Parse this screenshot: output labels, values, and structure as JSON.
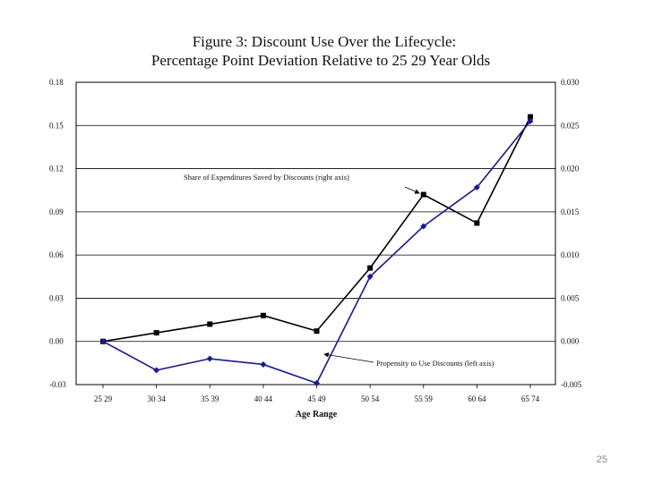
{
  "slide": {
    "page_number": "25"
  },
  "chart_data": {
    "type": "line",
    "title": "Figure 3:  Discount Use Over the Lifecycle:",
    "subtitle": "Percentage Point Deviation Relative to 25  29 Year Olds",
    "xlabel": "Age Range",
    "categories": [
      "25 29",
      "30 34",
      "35 39",
      "40 44",
      "45 49",
      "50 54",
      "55 59",
      "60 64",
      "65 74"
    ],
    "y_left": {
      "ylim": [
        -0.03,
        0.18
      ],
      "ticks": [
        "-0.03",
        "0.00",
        "0.03",
        "0.06",
        "0.09",
        "0.12",
        "0.15",
        "0.18"
      ]
    },
    "y_right": {
      "ylim": [
        -0.005,
        0.03
      ],
      "ticks": [
        "-0.005",
        "0.000",
        "0.005",
        "0.010",
        "0.015",
        "0.020",
        "0.025",
        "0.030"
      ]
    },
    "grid": true,
    "series": [
      {
        "name": "Share of Expenditures Saved by Discounts (right axis)",
        "axis": "right",
        "marker": "square",
        "color": "#000000",
        "values": [
          0.0,
          0.001,
          0.002,
          0.003,
          0.0012,
          0.0085,
          0.017,
          0.0137,
          0.026
        ]
      },
      {
        "name": "Propensity to Use Discounts (left axis)",
        "axis": "left",
        "marker": "diamond",
        "color": "#1a1a8c",
        "values": [
          0.0,
          -0.02,
          -0.012,
          -0.016,
          -0.029,
          0.045,
          0.08,
          0.107,
          0.153
        ]
      }
    ],
    "annotations": [
      {
        "text": "Share of Expenditures Saved by Discounts (right axis)",
        "series_index": 0,
        "point_index": 6
      },
      {
        "text": "Propensity to Use Discounts (left axis)",
        "series_index": 1,
        "point_index": 4
      }
    ]
  }
}
